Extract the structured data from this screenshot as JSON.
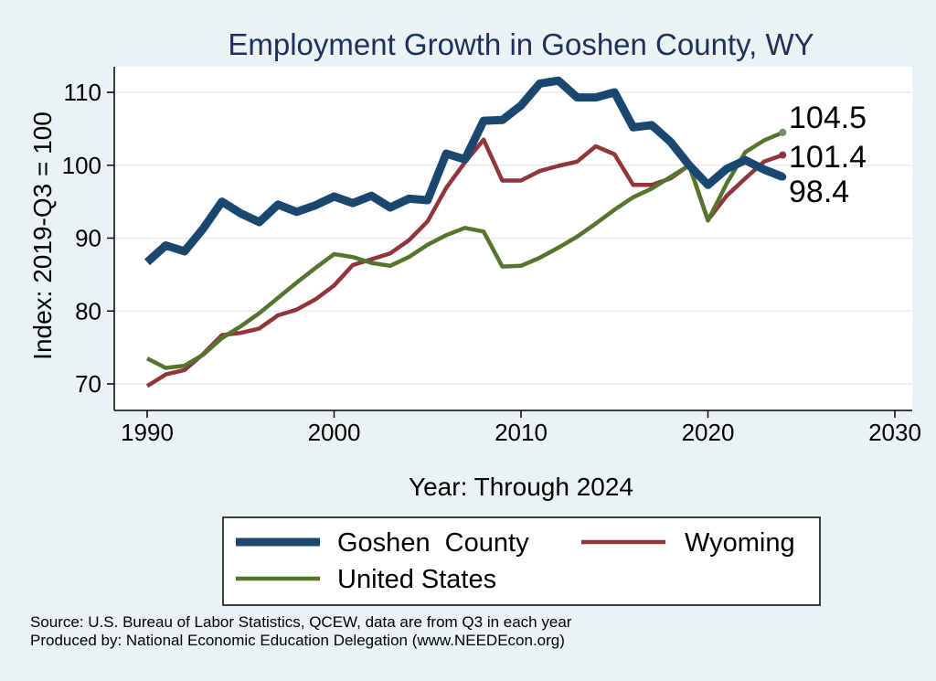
{
  "chart_data": {
    "type": "line",
    "title": "Employment Growth in Goshen County, WY",
    "xlabel": "Year: Through 2024",
    "ylabel": "Index: 2019-Q3 = 100",
    "xlim": [
      1990,
      2030
    ],
    "ylim": [
      67,
      113
    ],
    "x_ticks": [
      "1990",
      "2000",
      "2010",
      "2020",
      "2030"
    ],
    "y_ticks": [
      "70",
      "80",
      "90",
      "100",
      "110"
    ],
    "grid": true,
    "legend_position": "bottom",
    "x": [
      1990,
      1991,
      1992,
      1993,
      1994,
      1995,
      1996,
      1997,
      1998,
      1999,
      2000,
      2001,
      2002,
      2003,
      2004,
      2005,
      2006,
      2007,
      2008,
      2009,
      2010,
      2011,
      2012,
      2013,
      2014,
      2015,
      2016,
      2017,
      2018,
      2019,
      2020,
      2021,
      2022,
      2023,
      2024
    ],
    "series": [
      {
        "name": "Goshen  County",
        "color": "#1a476f",
        "values": [
          86.7,
          89.0,
          88.2,
          91.3,
          95.0,
          93.4,
          92.2,
          94.6,
          93.6,
          94.5,
          95.7,
          94.8,
          95.8,
          94.2,
          95.4,
          95.2,
          101.6,
          100.8,
          106.1,
          106.2,
          108.2,
          111.2,
          111.6,
          109.3,
          109.3,
          110.0,
          105.2,
          105.5,
          103.2,
          100.0,
          97.3,
          99.5,
          100.7,
          99.4,
          98.4
        ],
        "end_label": "98.4"
      },
      {
        "name": "Wyoming",
        "color": "#90353b",
        "values": [
          69.7,
          71.3,
          71.9,
          74.1,
          76.7,
          77.0,
          77.6,
          79.4,
          80.2,
          81.6,
          83.5,
          86.3,
          87.1,
          87.9,
          89.7,
          92.3,
          96.9,
          100.4,
          103.5,
          97.9,
          97.9,
          99.2,
          99.9,
          100.5,
          102.6,
          101.5,
          97.3,
          97.3,
          98.2,
          100.0,
          92.5,
          95.8,
          98.2,
          100.5,
          101.4
        ],
        "end_label": "101.4"
      },
      {
        "name": "United States",
        "color": "#55752f",
        "values": [
          73.5,
          72.2,
          72.5,
          74.0,
          76.3,
          77.9,
          79.7,
          81.8,
          83.9,
          85.9,
          87.8,
          87.4,
          86.6,
          86.2,
          87.4,
          89.1,
          90.4,
          91.4,
          90.9,
          86.1,
          86.2,
          87.3,
          88.7,
          90.2,
          92.0,
          93.9,
          95.6,
          96.8,
          98.4,
          100.0,
          92.4,
          97.5,
          101.8,
          103.4,
          104.5
        ],
        "end_label": "104.5"
      }
    ]
  },
  "footer": {
    "source": "Source: U.S. Bureau of Labor Statistics, QCEW, data are from Q3 in each year",
    "producer": "Produced by: National Economic Education Delegation (www.NEEDEcon.org)"
  }
}
